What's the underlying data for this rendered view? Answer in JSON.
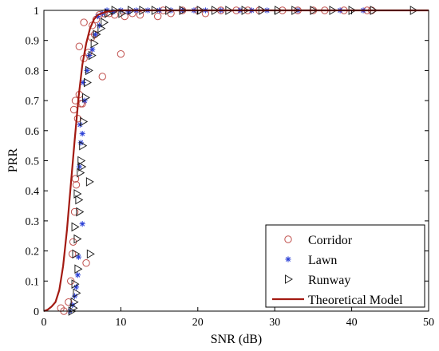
{
  "chart_data": {
    "type": "scatter",
    "xlabel": "SNR (dB)",
    "ylabel": "PRR",
    "xlim": [
      0,
      50
    ],
    "ylim": [
      0,
      1
    ],
    "x_ticks": [
      0,
      10,
      20,
      30,
      40,
      50
    ],
    "y_ticks": [
      0,
      0.1,
      0.2,
      0.3,
      0.4,
      0.5,
      0.6,
      0.7,
      0.8,
      0.9,
      1
    ],
    "grid": false,
    "legend_position": "bottom-right",
    "colors": {
      "corridor": "#c0504d",
      "lawn": "#2a3fd6",
      "runway": "#222222",
      "model": "#a31a12"
    },
    "series": [
      {
        "name": "Corridor",
        "marker": "circle",
        "points": [
          [
            2.2,
            0.01
          ],
          [
            2.6,
            0.0
          ],
          [
            3.2,
            0.03
          ],
          [
            3.5,
            0.1
          ],
          [
            3.7,
            0.19
          ],
          [
            3.8,
            0.23
          ],
          [
            4.0,
            0.33
          ],
          [
            4.1,
            0.44
          ],
          [
            4.2,
            0.42
          ],
          [
            3.9,
            0.67
          ],
          [
            4.1,
            0.7
          ],
          [
            4.4,
            0.64
          ],
          [
            4.6,
            0.72
          ],
          [
            4.8,
            0.69
          ],
          [
            5.0,
            0.69
          ],
          [
            5.5,
            0.16
          ],
          [
            4.6,
            0.88
          ],
          [
            5.2,
            0.84
          ],
          [
            5.8,
            0.86
          ],
          [
            6.2,
            0.91
          ],
          [
            6.6,
            0.92
          ],
          [
            7.6,
            0.78
          ],
          [
            10.0,
            0.855
          ],
          [
            5.2,
            0.96
          ],
          [
            6.3,
            0.95
          ],
          [
            6.8,
            0.97
          ],
          [
            7.2,
            0.985
          ],
          [
            7.8,
            0.99
          ],
          [
            8.5,
            0.99
          ],
          [
            9.2,
            0.985
          ],
          [
            10.5,
            0.98
          ],
          [
            11.5,
            0.99
          ],
          [
            12.5,
            0.985
          ],
          [
            14.8,
            0.98
          ],
          [
            15.5,
            1.0
          ],
          [
            16.5,
            0.99
          ],
          [
            18.0,
            1.0
          ],
          [
            20.0,
            1.0
          ],
          [
            21.0,
            0.99
          ],
          [
            23.0,
            1.0
          ],
          [
            25.0,
            1.0
          ],
          [
            26.5,
            1.0
          ],
          [
            28.0,
            1.0
          ],
          [
            31.0,
            1.0
          ],
          [
            33.0,
            1.0
          ],
          [
            35.0,
            1.0
          ],
          [
            36.5,
            1.0
          ],
          [
            39.0,
            1.0
          ],
          [
            42.0,
            1.0
          ],
          [
            42.6,
            1.0
          ]
        ]
      },
      {
        "name": "Lawn",
        "marker": "star",
        "points": [
          [
            3.4,
            0.0
          ],
          [
            3.7,
            0.02
          ],
          [
            4.0,
            0.05
          ],
          [
            4.2,
            0.08
          ],
          [
            4.4,
            0.12
          ],
          [
            4.5,
            0.18
          ],
          [
            5.0,
            0.29
          ],
          [
            4.6,
            0.48
          ],
          [
            4.8,
            0.56
          ],
          [
            5.0,
            0.59
          ],
          [
            4.7,
            0.62
          ],
          [
            5.3,
            0.7
          ],
          [
            5.1,
            0.76
          ],
          [
            5.6,
            0.8
          ],
          [
            5.9,
            0.85
          ],
          [
            6.3,
            0.87
          ],
          [
            6.7,
            0.92
          ],
          [
            7.2,
            0.95
          ],
          [
            7.0,
            0.98
          ],
          [
            7.6,
            0.99
          ],
          [
            8.2,
            1.0
          ],
          [
            9.0,
            0.995
          ],
          [
            10.0,
            1.0
          ],
          [
            11.0,
            0.995
          ],
          [
            12.0,
            1.0
          ],
          [
            13.5,
            1.0
          ],
          [
            15.0,
            1.0
          ],
          [
            16.5,
            1.0
          ],
          [
            18.0,
            1.0
          ],
          [
            19.5,
            1.0
          ],
          [
            21.0,
            1.0
          ],
          [
            23.0,
            1.0
          ],
          [
            25.5,
            1.0
          ],
          [
            27.0,
            1.0
          ],
          [
            29.0,
            1.0
          ],
          [
            33.0,
            1.0
          ],
          [
            38.5,
            1.0
          ],
          [
            41.5,
            1.0
          ]
        ]
      },
      {
        "name": "Runway",
        "marker": "triangle-right",
        "points": [
          [
            3.6,
            0.0
          ],
          [
            3.8,
            0.01
          ],
          [
            3.9,
            0.03
          ],
          [
            4.2,
            0.06
          ],
          [
            4.0,
            0.09
          ],
          [
            4.4,
            0.14
          ],
          [
            4.1,
            0.19
          ],
          [
            4.3,
            0.24
          ],
          [
            4.0,
            0.28
          ],
          [
            4.6,
            0.33
          ],
          [
            4.5,
            0.37
          ],
          [
            4.3,
            0.39
          ],
          [
            4.7,
            0.46
          ],
          [
            4.9,
            0.48
          ],
          [
            4.8,
            0.5
          ],
          [
            6.0,
            0.19
          ],
          [
            5.9,
            0.43
          ],
          [
            5.0,
            0.55
          ],
          [
            5.1,
            0.63
          ],
          [
            5.4,
            0.71
          ],
          [
            5.6,
            0.76
          ],
          [
            5.8,
            0.8
          ],
          [
            6.2,
            0.85
          ],
          [
            6.5,
            0.89
          ],
          [
            6.8,
            0.92
          ],
          [
            7.4,
            0.94
          ],
          [
            7.8,
            0.96
          ],
          [
            8.3,
            0.99
          ],
          [
            9.2,
            1.0
          ],
          [
            10.1,
            0.99
          ],
          [
            11.3,
            1.0
          ],
          [
            12.8,
            1.0
          ],
          [
            14.4,
            1.0
          ],
          [
            16.2,
            1.0
          ],
          [
            18.0,
            1.0
          ],
          [
            20.3,
            1.0
          ],
          [
            22.2,
            1.0
          ],
          [
            24.0,
            1.0
          ],
          [
            26.1,
            1.0
          ],
          [
            28.3,
            1.0
          ],
          [
            30.4,
            1.0
          ],
          [
            32.6,
            1.0
          ],
          [
            35.0,
            1.0
          ],
          [
            37.5,
            1.0
          ],
          [
            40.0,
            1.0
          ],
          [
            42.8,
            1.0
          ],
          [
            48.0,
            1.0
          ]
        ]
      },
      {
        "name": "Theoretical Model",
        "marker": "line",
        "points": [
          [
            0.0,
            0.0
          ],
          [
            0.5,
            0.005
          ],
          [
            1.0,
            0.015
          ],
          [
            1.5,
            0.03
          ],
          [
            2.0,
            0.07
          ],
          [
            2.5,
            0.15
          ],
          [
            3.0,
            0.27
          ],
          [
            3.5,
            0.42
          ],
          [
            4.0,
            0.57
          ],
          [
            4.5,
            0.71
          ],
          [
            5.0,
            0.82
          ],
          [
            5.5,
            0.89
          ],
          [
            6.0,
            0.94
          ],
          [
            6.5,
            0.97
          ],
          [
            7.0,
            0.985
          ],
          [
            8.0,
            0.995
          ],
          [
            9.0,
            0.999
          ],
          [
            10.0,
            1.0
          ],
          [
            20.0,
            1.0
          ],
          [
            30.0,
            1.0
          ],
          [
            40.0,
            1.0
          ],
          [
            50.0,
            1.0
          ]
        ]
      }
    ]
  }
}
